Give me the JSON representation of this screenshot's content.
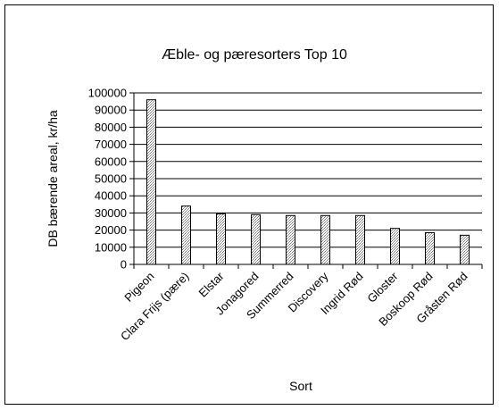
{
  "chart_data": {
    "type": "bar",
    "title": "Æble- og pæresorters Top 10",
    "xlabel": "Sort",
    "ylabel": "DB bærende areal, kr/ha",
    "categories": [
      "Pigeon",
      "Clara Frijs (pære)",
      "Elstar",
      "Jonagored",
      "Summerred",
      "Discovery",
      "Ingrid Rød",
      "Gloster",
      "Boskoop Rød",
      "Gråsten Rød"
    ],
    "values": [
      96000,
      34000,
      29500,
      29000,
      28500,
      28500,
      28500,
      21000,
      18500,
      17000
    ],
    "ylim": [
      0,
      100000
    ],
    "yticks": [
      "0",
      "10000",
      "20000",
      "30000",
      "40000",
      "50000",
      "60000",
      "70000",
      "80000",
      "90000",
      "100000"
    ],
    "grid": true,
    "legend": "none",
    "bar_fill": "#c8c8c8",
    "bar_stroke": "#000000"
  }
}
